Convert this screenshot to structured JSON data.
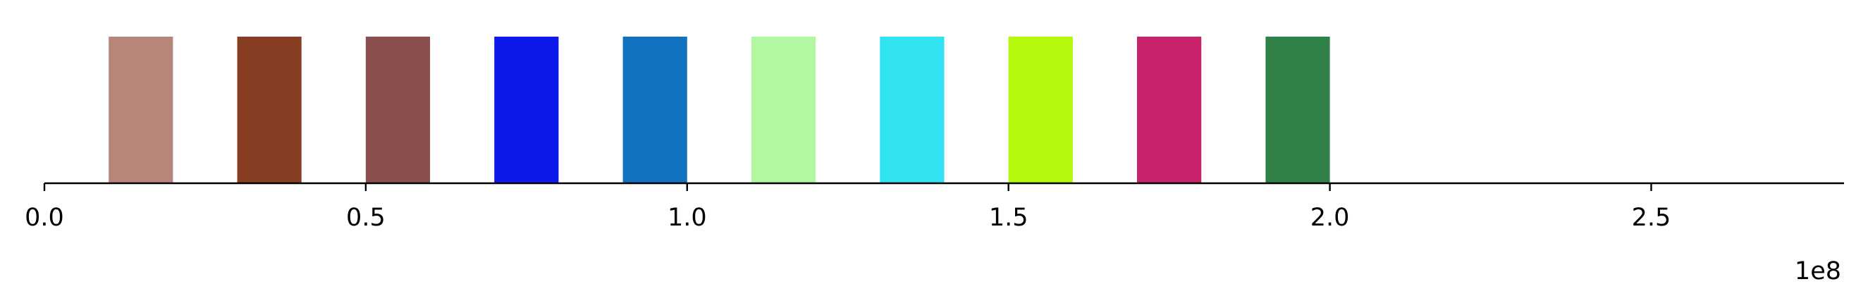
{
  "chart_data": {
    "type": "bar",
    "title": "",
    "xlabel": "",
    "ylabel": "",
    "x_offset_label": "1e8",
    "xlim": [
      0,
      2.8
    ],
    "x_ticks": [
      0.0,
      0.5,
      1.0,
      1.5,
      2.0,
      2.5
    ],
    "x_tick_labels": [
      "0.0",
      "0.5",
      "1.0",
      "1.5",
      "2.0",
      "2.5"
    ],
    "grid": false,
    "bars": [
      {
        "start": 0.1,
        "end": 0.2,
        "color": "#b8857b"
      },
      {
        "start": 0.3,
        "end": 0.4,
        "color": "#873e23"
      },
      {
        "start": 0.5,
        "end": 0.6,
        "color": "#8b4f50"
      },
      {
        "start": 0.7,
        "end": 0.8,
        "color": "#0d19eb"
      },
      {
        "start": 0.9,
        "end": 1.0,
        "color": "#1172c1"
      },
      {
        "start": 1.1,
        "end": 1.2,
        "color": "#b4f7a3"
      },
      {
        "start": 1.3,
        "end": 1.4,
        "color": "#31e2f0"
      },
      {
        "start": 1.5,
        "end": 1.6,
        "color": "#b4f80b"
      },
      {
        "start": 1.7,
        "end": 1.8,
        "color": "#c8226a"
      },
      {
        "start": 1.9,
        "end": 2.0,
        "color": "#308148"
      }
    ]
  }
}
